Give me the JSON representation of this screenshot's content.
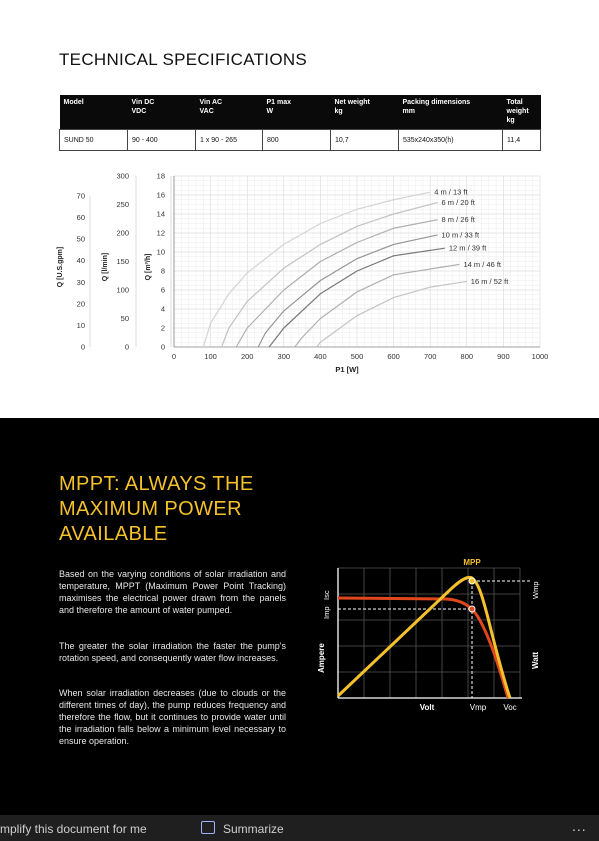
{
  "spec": {
    "title": "TECHNICAL SPECIFICATIONS",
    "headers": [
      [
        "Model",
        ""
      ],
      [
        "Vin DC",
        "VDC"
      ],
      [
        "Vin AC",
        "VAC"
      ],
      [
        "P1 max",
        "W"
      ],
      [
        "Net weight",
        "kg"
      ],
      [
        "Packing dimensions",
        "mm"
      ],
      [
        "Total weight",
        "kg"
      ]
    ],
    "row": [
      "SUND 50",
      "90 - 400",
      "1 x 90 - 265",
      "800",
      "10,7",
      "535x240x350(h)",
      "11,4"
    ]
  },
  "chart_data": {
    "type": "line",
    "xlabel": "P1 [W]",
    "xlim": [
      0,
      1000
    ],
    "x_ticks": [
      "0",
      "100",
      "200",
      "300",
      "400",
      "500",
      "600",
      "700",
      "800",
      "900",
      "1000"
    ],
    "y_axes": [
      {
        "label": "Q [U.S.gpm]",
        "ticks": [
          "0",
          "10",
          "20",
          "30",
          "40",
          "50",
          "60",
          "70"
        ]
      },
      {
        "label": "Q [l/min]",
        "ticks": [
          "0",
          "50",
          "100",
          "150",
          "200",
          "250",
          "300"
        ]
      },
      {
        "label": "Q [m³/h]",
        "ticks": [
          "0",
          "2",
          "4",
          "6",
          "8",
          "10",
          "12",
          "14",
          "16",
          "18"
        ],
        "ylim": [
          0,
          18
        ]
      }
    ],
    "series": [
      {
        "name": "4 m / 13 ft",
        "color": "#d4d4d4",
        "x": [
          80,
          100,
          150,
          200,
          300,
          400,
          500,
          600,
          700
        ],
        "y": [
          0,
          2.5,
          5.6,
          7.8,
          10.8,
          13.0,
          14.5,
          15.5,
          16.3
        ]
      },
      {
        "name": "6 m / 20 ft",
        "color": "#c2c2c2",
        "x": [
          130,
          150,
          200,
          300,
          400,
          500,
          600,
          720
        ],
        "y": [
          0,
          2.0,
          4.8,
          8.3,
          10.8,
          12.7,
          14.0,
          15.2
        ]
      },
      {
        "name": "8 m / 26 ft",
        "color": "#aeaeae",
        "x": [
          170,
          200,
          300,
          400,
          500,
          600,
          720
        ],
        "y": [
          0,
          2.0,
          6.0,
          9.0,
          11.0,
          12.5,
          13.4
        ]
      },
      {
        "name": "10 m / 33 ft",
        "color": "#959595",
        "x": [
          230,
          250,
          300,
          400,
          500,
          600,
          720
        ],
        "y": [
          0,
          1.5,
          3.8,
          7.0,
          9.3,
          10.8,
          11.8
        ]
      },
      {
        "name": "12 m / 39 ft",
        "color": "#777777",
        "x": [
          260,
          300,
          400,
          500,
          600,
          740
        ],
        "y": [
          0,
          2.0,
          5.6,
          8.0,
          9.6,
          10.4
        ]
      },
      {
        "name": "14 m / 46 ft",
        "color": "#b0b0b0",
        "x": [
          330,
          350,
          400,
          500,
          600,
          780
        ],
        "y": [
          0,
          1.0,
          3.0,
          5.8,
          7.6,
          8.7
        ]
      },
      {
        "name": "16 m / 52 ft",
        "color": "#c4c4c4",
        "x": [
          390,
          400,
          500,
          600,
          700,
          800
        ],
        "y": [
          0,
          0.5,
          3.3,
          5.2,
          6.3,
          6.9
        ]
      }
    ]
  },
  "mppt": {
    "title_lines": [
      "MPPT: ALWAYS THE",
      "MAXIMUM POWER",
      "AVAILABLE"
    ],
    "paragraphs": [
      [
        "Based on the varying conditions of solar",
        "irradiation and temperature, MPPT (Maximum",
        "Power Point Tracking) maximises the",
        "electrical power drawn from the panels and",
        "therefore the amount of water pumped."
      ],
      [
        "The greater the solar irradiation the faster",
        "the pump's rotation speed, and consequently",
        "water flow increases."
      ],
      [
        "When solar irradiation decreases (due to",
        "clouds or the different times of day), the",
        "pump reduces frequency and therefore the",
        "flow, but it continues to provide water until",
        "the irradiation falls below a minimum level",
        "necessary to ensure operation."
      ]
    ],
    "diagram": {
      "mpp": "MPP",
      "isc": "Isc",
      "imp": "Imp",
      "ampere": "Ampere",
      "wmp": "Wmp",
      "watt": "Watt",
      "volt": "Volt",
      "vmp": "Vmp",
      "voc": "Voc",
      "colors": {
        "current": "#e0471c",
        "power": "#f5c12b"
      }
    }
  },
  "toolbar": {
    "simplify": "mplify this document for me",
    "summarize": "Summarize",
    "more": "..."
  }
}
